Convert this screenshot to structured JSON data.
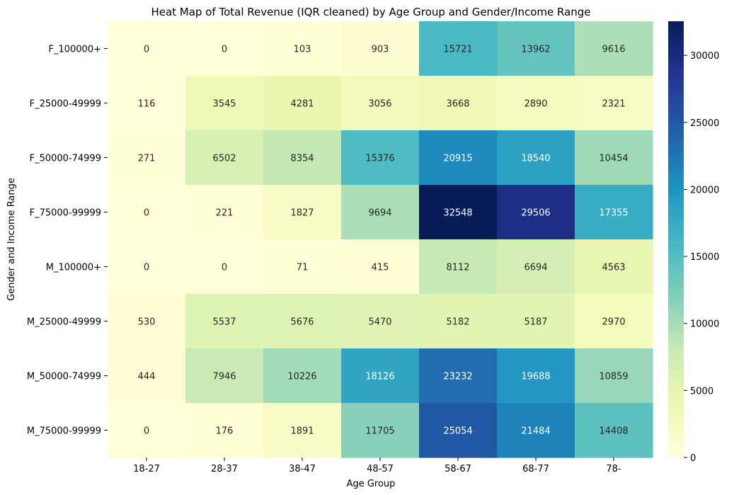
{
  "chart_data": {
    "type": "heatmap",
    "title": "Heat Map of Total Revenue (IQR cleaned) by Age Group and Gender/Income Range",
    "xlabel": "Age Group",
    "ylabel": "Gender and Income Range",
    "x_categories": [
      "18-27",
      "28-37",
      "38-47",
      "48-57",
      "58-67",
      "68-77",
      "78-"
    ],
    "y_categories": [
      "F_100000+",
      "F_25000-49999",
      "F_50000-74999",
      "F_75000-99999",
      "M_100000+",
      "M_25000-49999",
      "M_50000-74999",
      "M_75000-99999"
    ],
    "values": [
      [
        0,
        0,
        103,
        903,
        15721,
        13962,
        9616
      ],
      [
        116,
        3545,
        4281,
        3056,
        3668,
        2890,
        2321
      ],
      [
        271,
        6502,
        8354,
        15376,
        20915,
        18540,
        10454
      ],
      [
        0,
        221,
        1827,
        9694,
        32548,
        29506,
        17355
      ],
      [
        0,
        0,
        71,
        415,
        8112,
        6694,
        4563
      ],
      [
        530,
        5537,
        5676,
        5470,
        5182,
        5187,
        2970
      ],
      [
        444,
        7946,
        10226,
        18126,
        23232,
        19688,
        10859
      ],
      [
        0,
        176,
        1891,
        11705,
        25054,
        21484,
        14408
      ]
    ],
    "value_range": [
      0,
      32548
    ],
    "colormap": "YlGnBu",
    "colorbar_ticks": [
      0,
      5000,
      10000,
      15000,
      20000,
      25000,
      30000
    ],
    "grid": false,
    "legend": "colorbar-right"
  }
}
